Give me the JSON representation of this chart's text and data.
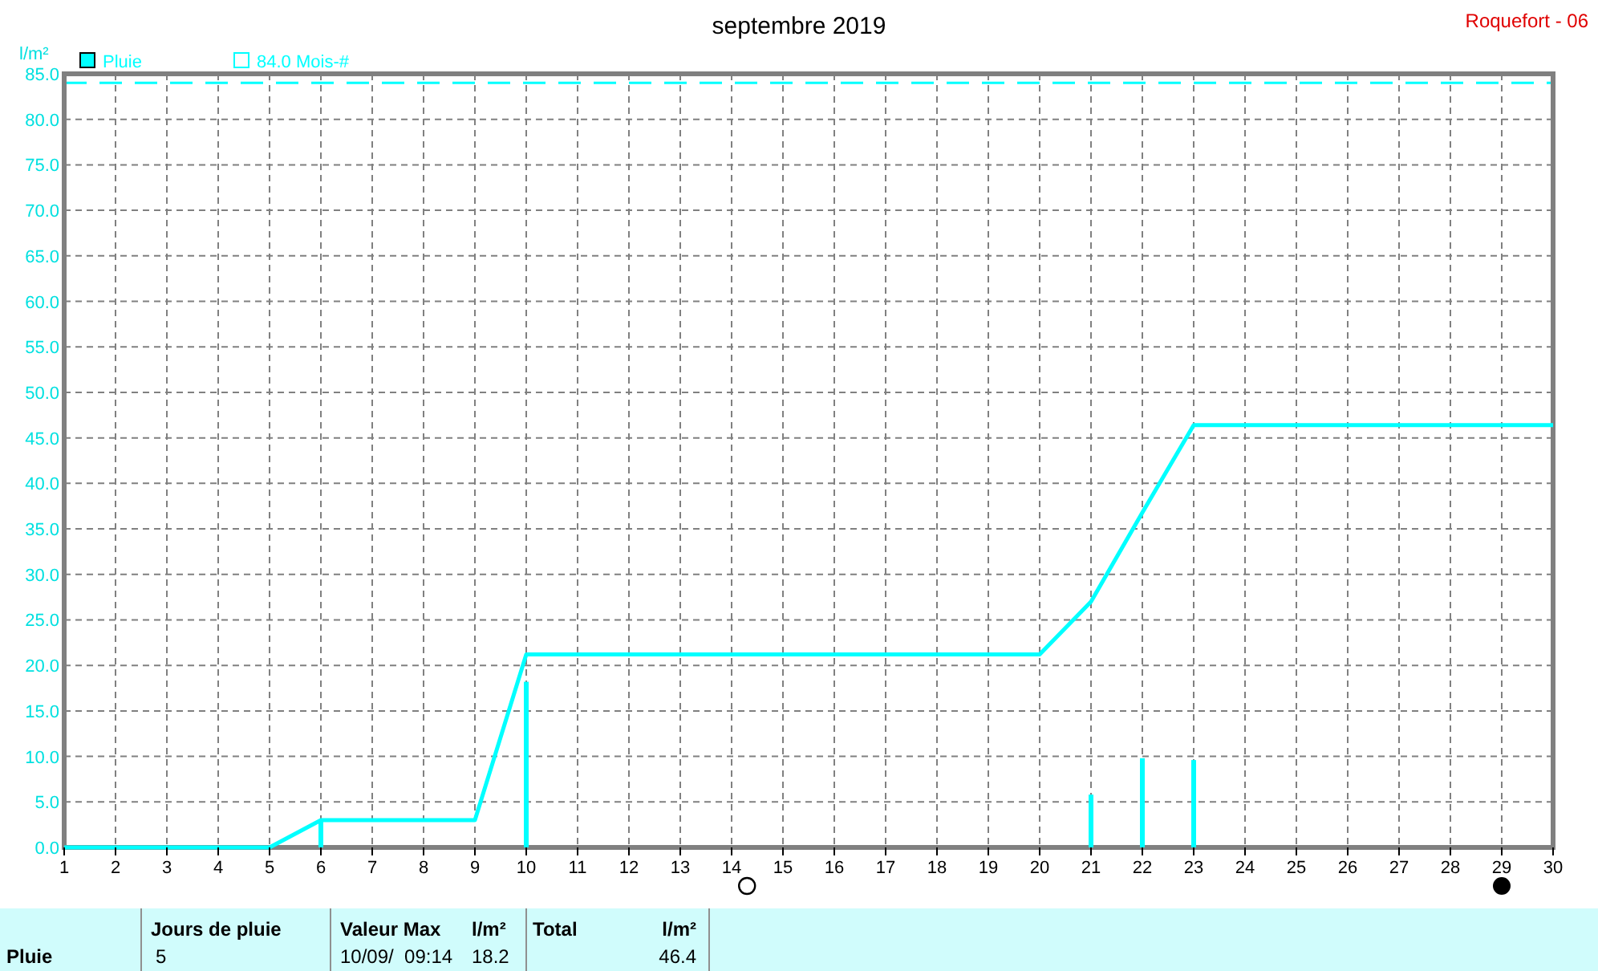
{
  "chart_data": {
    "type": "line",
    "title": "septembre 2019",
    "subtitle": "Roquefort - 06",
    "ylabel": "l/m²",
    "x": [
      1,
      2,
      3,
      4,
      5,
      6,
      7,
      8,
      9,
      10,
      11,
      12,
      13,
      14,
      15,
      16,
      17,
      18,
      19,
      20,
      21,
      22,
      23,
      24,
      25,
      26,
      27,
      28,
      29,
      30
    ],
    "series": [
      {
        "name": "Pluie",
        "type": "bar",
        "color": "#00ffff",
        "values": [
          null,
          null,
          null,
          null,
          null,
          3.0,
          null,
          null,
          null,
          18.2,
          null,
          null,
          null,
          null,
          null,
          null,
          null,
          null,
          null,
          null,
          5.8,
          9.8,
          9.6,
          null,
          null,
          null,
          null,
          null,
          null,
          null
        ]
      },
      {
        "color": "#00ffff",
        "values": [
          0,
          0,
          0,
          0,
          0,
          3.0,
          3.0,
          3.0,
          3.0,
          21.2,
          21.2,
          21.2,
          21.2,
          21.2,
          21.2,
          21.2,
          21.2,
          21.2,
          21.2,
          21.2,
          27.0,
          36.8,
          46.4,
          46.4,
          46.4,
          46.4,
          46.4,
          46.4,
          46.4,
          46.4
        ]
      }
    ],
    "xlim": [
      1,
      30
    ],
    "xticks": [
      1,
      2,
      3,
      4,
      5,
      6,
      7,
      8,
      9,
      10,
      11,
      12,
      13,
      14,
      15,
      16,
      17,
      18,
      19,
      20,
      21,
      22,
      23,
      24,
      25,
      26,
      27,
      28,
      29,
      30
    ],
    "ylim": [
      0,
      85
    ],
    "yticks": [
      {
        "value": 0,
        "label": "0.0"
      },
      {
        "value": 5,
        "label": "5.0"
      },
      {
        "value": 10,
        "label": "10.0"
      },
      {
        "value": 15,
        "label": "15.0"
      },
      {
        "value": 20,
        "label": "20.0"
      },
      {
        "value": 25,
        "label": "25.0"
      },
      {
        "value": 30,
        "label": "30.0"
      },
      {
        "value": 35,
        "label": "35.0"
      },
      {
        "value": 40,
        "label": "40.0"
      },
      {
        "value": 45,
        "label": "45.0"
      },
      {
        "value": 50,
        "label": "50.0"
      },
      {
        "value": 55,
        "label": "55.0"
      },
      {
        "value": 60,
        "label": "60.0"
      },
      {
        "value": 65,
        "label": "65.0"
      },
      {
        "value": 70,
        "label": "70.0"
      },
      {
        "value": 75,
        "label": "75.0"
      },
      {
        "value": 80,
        "label": "80.0"
      },
      {
        "value": 85,
        "label": "85.0"
      }
    ],
    "ref_lines": [
      {
        "axis": "y",
        "value": 84.0,
        "label": "84.0 Mois-#",
        "color": "#00ffff",
        "line_style": "dashed"
      }
    ],
    "grid": true,
    "legend": "top left",
    "marker": "none",
    "annotations": [
      "Pluie",
      "Jours de pluie",
      "5",
      "Valeur Max",
      "l/m²",
      "10/09/  09:14",
      "18.2",
      "Total",
      "l/m²",
      "46.4"
    ]
  }
}
